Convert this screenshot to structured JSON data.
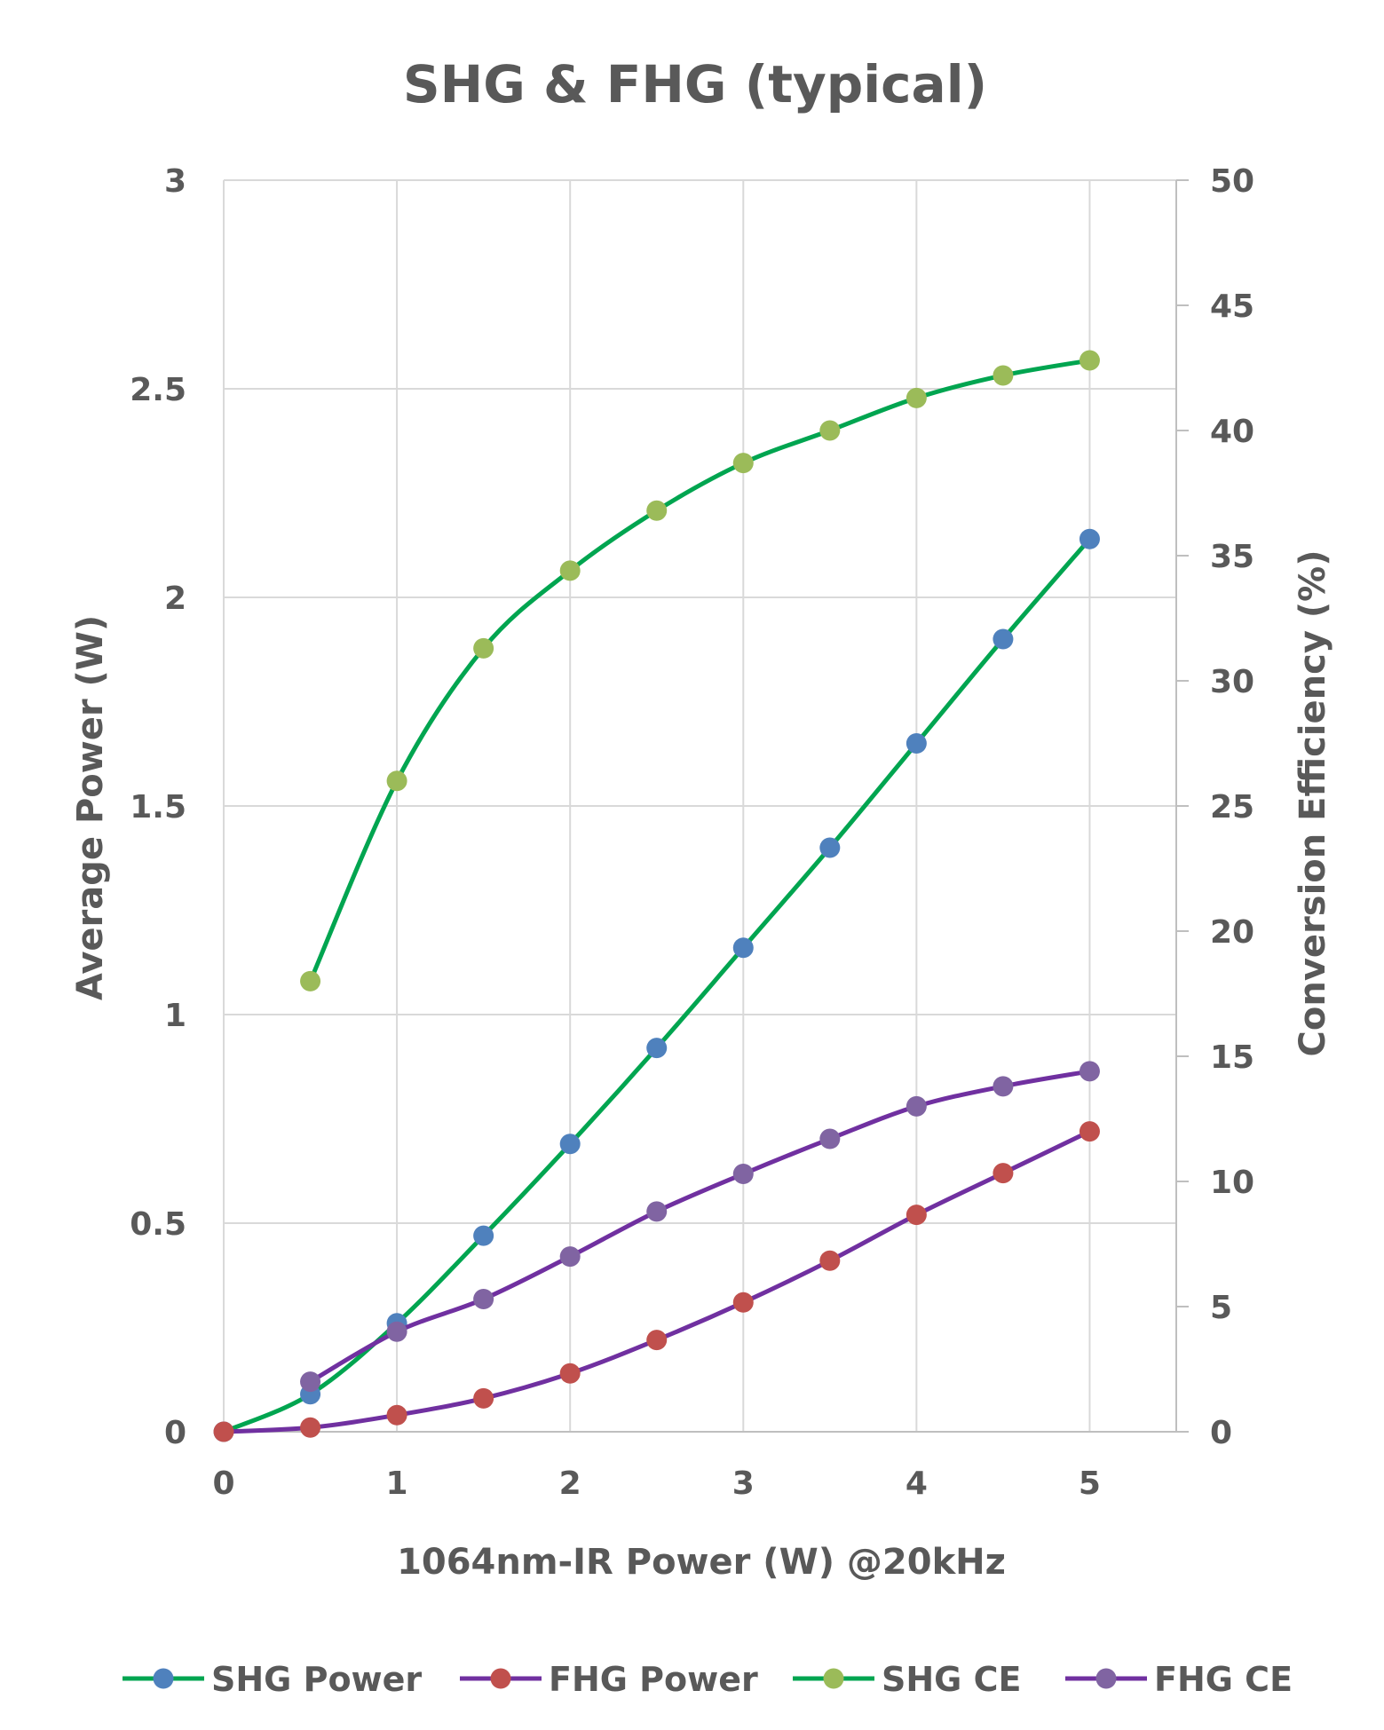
{
  "chart_data": {
    "type": "line",
    "title": "SHG & FHG (typical)",
    "xlabel": "1064nm-IR Power (W) @20kHz",
    "ylabel": "Average Power (W)",
    "y2label": "Conversion Efficiency (%)",
    "xlim": [
      0,
      5.5
    ],
    "ylim": [
      0,
      3
    ],
    "y2lim": [
      0,
      50
    ],
    "x_ticks": [
      "0",
      "1",
      "2",
      "3",
      "4",
      "5"
    ],
    "y_ticks": [
      "0",
      "0.5",
      "1",
      "1.5",
      "2",
      "2.5",
      "3"
    ],
    "y2_ticks": [
      "0",
      "5",
      "10",
      "15",
      "20",
      "25",
      "30",
      "35",
      "40",
      "45",
      "50"
    ],
    "grid": true,
    "legend_position": "bottom",
    "series": [
      {
        "name": "SHG Power",
        "axis": "left",
        "line_color": "#00A550",
        "marker_color": "#4F81BD",
        "x": [
          0,
          0.5,
          1,
          1.5,
          2,
          2.5,
          3,
          3.5,
          4,
          4.5,
          5
        ],
        "values": [
          0,
          0.09,
          0.26,
          0.47,
          0.69,
          0.92,
          1.16,
          1.4,
          1.65,
          1.9,
          2.14
        ]
      },
      {
        "name": "FHG Power",
        "axis": "left",
        "line_color": "#7030A0",
        "marker_color": "#C0504D",
        "x": [
          0,
          0.5,
          1,
          1.5,
          2,
          2.5,
          3,
          3.5,
          4,
          4.5,
          5
        ],
        "values": [
          0,
          0.01,
          0.04,
          0.08,
          0.14,
          0.22,
          0.31,
          0.41,
          0.52,
          0.62,
          0.72
        ]
      },
      {
        "name": "SHG CE",
        "axis": "right",
        "line_color": "#00A550",
        "marker_color": "#9BBB59",
        "x": [
          0.5,
          1,
          1.5,
          2,
          2.5,
          3,
          3.5,
          4,
          4.5,
          5
        ],
        "values": [
          18,
          26,
          31.3,
          34.4,
          36.8,
          38.7,
          40,
          41.3,
          42.2,
          42.8
        ]
      },
      {
        "name": "FHG CE",
        "axis": "right",
        "line_color": "#7030A0",
        "marker_color": "#8064A2",
        "x": [
          0.5,
          1,
          1.5,
          2,
          2.5,
          3,
          3.5,
          4,
          4.5,
          5
        ],
        "values": [
          2,
          4,
          5.3,
          7,
          8.8,
          10.3,
          11.7,
          13,
          13.8,
          14.4
        ]
      }
    ]
  }
}
